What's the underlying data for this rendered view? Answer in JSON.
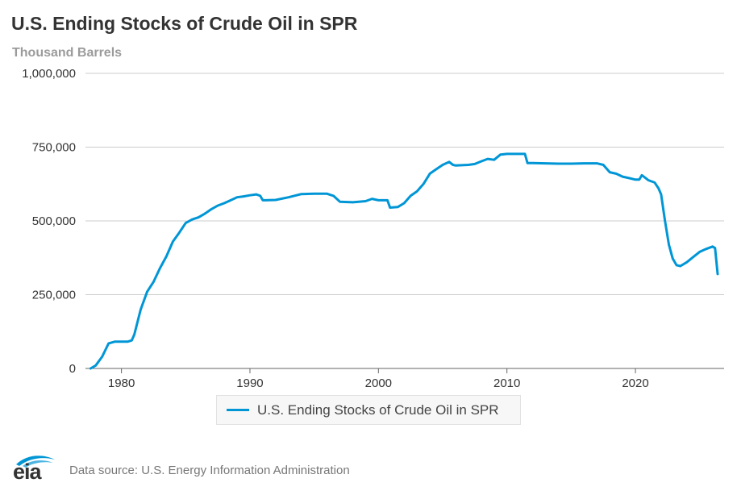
{
  "header": {
    "title": "U.S. Ending Stocks of Crude Oil in SPR",
    "subtitle": "Thousand Barrels"
  },
  "legend": {
    "label": "U.S. Ending Stocks of Crude Oil in SPR"
  },
  "footer": {
    "logo_text": "eia",
    "source": "Data source: U.S. Energy Information Administration"
  },
  "colors": {
    "series": "#0096d6",
    "grid": "#cccccc",
    "axis_text": "#333333"
  },
  "chart_data": {
    "type": "line",
    "title": "U.S. Ending Stocks of Crude Oil in SPR",
    "ylabel": "Thousand Barrels",
    "xlabel": "",
    "xlim": [
      1977.2,
      2026.9
    ],
    "ylim": [
      0,
      1000000
    ],
    "x_ticks": [
      1980,
      1990,
      2000,
      2010,
      2020
    ],
    "y_ticks": [
      0,
      250000,
      500000,
      750000,
      1000000
    ],
    "y_tick_labels": [
      "0",
      "250,000",
      "500,000",
      "750,000",
      "1,000,000"
    ],
    "grid": true,
    "legend_position": "bottom-center",
    "series": [
      {
        "name": "U.S. Ending Stocks of Crude Oil in SPR",
        "x": [
          1977.6,
          1978.0,
          1978.5,
          1979.0,
          1979.5,
          1980.0,
          1980.5,
          1980.8,
          1981.0,
          1981.5,
          1982.0,
          1982.5,
          1983.0,
          1983.5,
          1984.0,
          1984.5,
          1985.0,
          1985.5,
          1986.0,
          1986.5,
          1987.0,
          1987.5,
          1988.0,
          1988.5,
          1989.0,
          1989.5,
          1990.0,
          1990.5,
          1990.8,
          1991.0,
          1991.2,
          1992.0,
          1993.0,
          1994.0,
          1995.0,
          1996.0,
          1996.5,
          1997.0,
          1998.0,
          1999.0,
          1999.5,
          2000.0,
          2000.7,
          2000.9,
          2001.5,
          2002.0,
          2002.5,
          2003.0,
          2003.5,
          2004.0,
          2004.5,
          2005.0,
          2005.5,
          2005.8,
          2006.0,
          2007.0,
          2007.5,
          2008.0,
          2008.5,
          2009.0,
          2009.5,
          2010.0,
          2011.0,
          2011.4,
          2011.6,
          2012.0,
          2013.0,
          2014.0,
          2015.0,
          2016.0,
          2017.0,
          2017.5,
          2018.0,
          2018.5,
          2019.0,
          2019.5,
          2020.0,
          2020.3,
          2020.5,
          2020.8,
          2021.0,
          2021.5,
          2021.8,
          2022.0,
          2022.3,
          2022.6,
          2022.9,
          2023.2,
          2023.5,
          2024.0,
          2024.5,
          2025.0,
          2025.5,
          2026.0,
          2026.2,
          2026.4
        ],
        "values": [
          0,
          10000,
          40000,
          85000,
          91000,
          91000,
          91000,
          95000,
          115000,
          200000,
          260000,
          294000,
          340000,
          380000,
          430000,
          460000,
          493000,
          505000,
          512000,
          525000,
          540000,
          552000,
          560000,
          570000,
          580000,
          583000,
          587000,
          590000,
          585000,
          570000,
          570000,
          571000,
          580000,
          591000,
          592000,
          592000,
          585000,
          565000,
          563000,
          567000,
          575000,
          570000,
          570000,
          545000,
          547000,
          560000,
          585000,
          600000,
          625000,
          660000,
          675000,
          690000,
          700000,
          690000,
          688000,
          690000,
          693000,
          702000,
          710000,
          707000,
          725000,
          727000,
          727000,
          727000,
          696000,
          696000,
          695000,
          694000,
          694000,
          695000,
          695000,
          690000,
          665000,
          660000,
          650000,
          645000,
          640000,
          640000,
          655000,
          645000,
          638000,
          630000,
          610000,
          590000,
          500000,
          420000,
          372000,
          350000,
          347000,
          360000,
          378000,
          395000,
          405000,
          413000,
          408000,
          320000
        ]
      }
    ]
  }
}
